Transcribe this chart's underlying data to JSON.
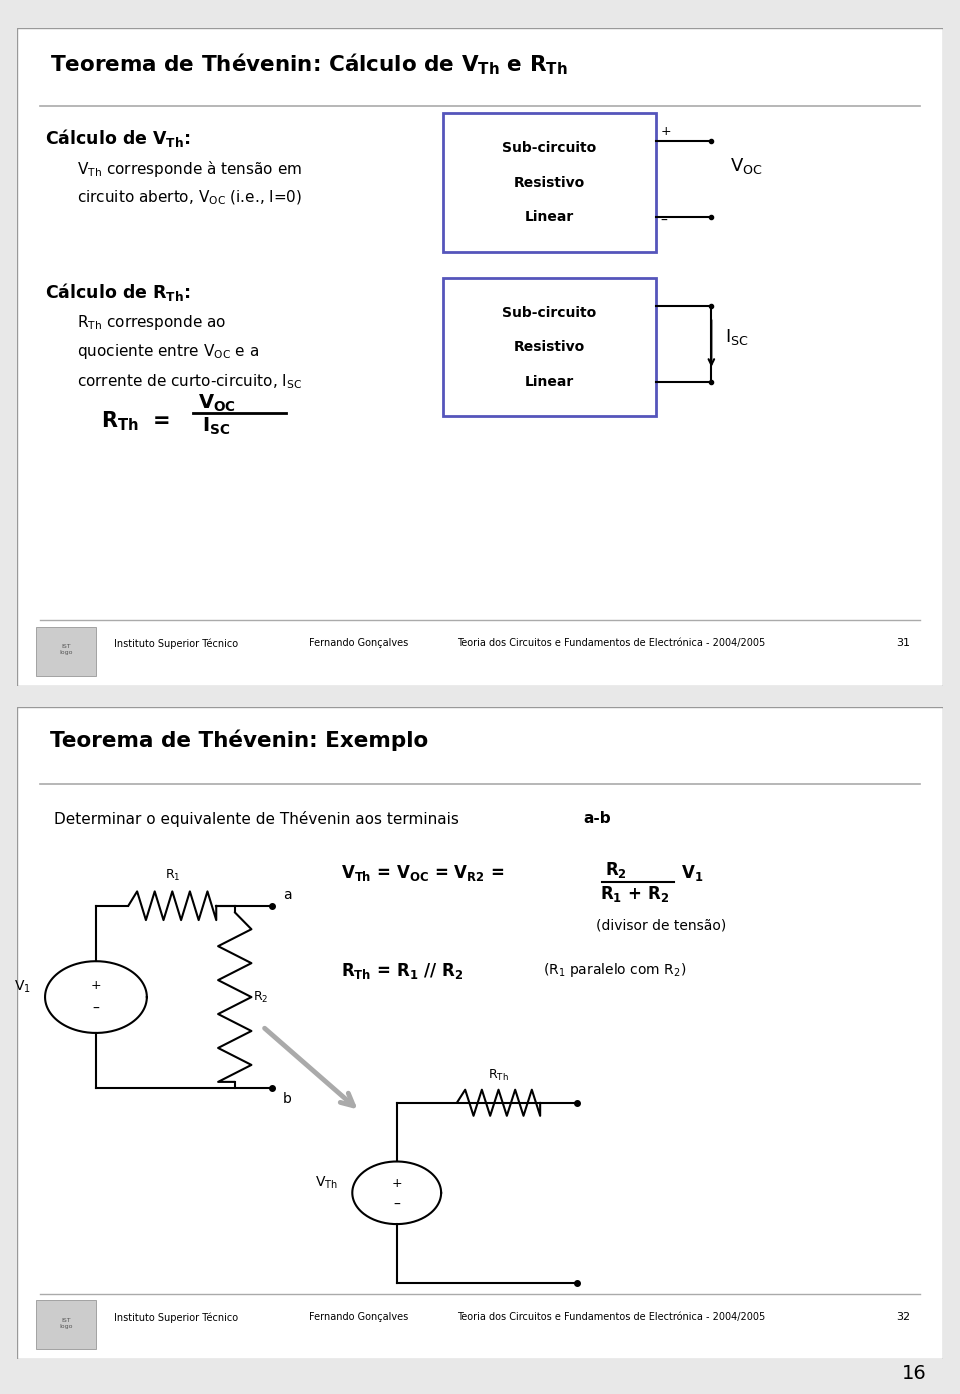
{
  "bg_color": "#e8e8e8",
  "slide1_title": "Teorema de Thévenin: Cálculo de V$_\\mathregular{Th}$ e R$_\\mathregular{Th}$",
  "slide1_sec1_head": "Cálculo de V$_\\mathregular{Th}$:",
  "slide1_sec1_l1": "V$_\\mathregular{Th}$ corresponde à tensão em",
  "slide1_sec1_l2": "circuito aberto, V$_\\mathregular{OC}$ (i.e., I=0)",
  "slide1_box_text": [
    "Sub-circuito",
    "Resistivo",
    "Linear"
  ],
  "slide1_voc": "V$_\\mathregular{OC}$",
  "slide1_sec2_head": "Cálculo de R$_\\mathregular{Th}$:",
  "slide1_sec2_l1": "R$_\\mathregular{Th}$ corresponde ao",
  "slide1_sec2_l2": "quociente entre V$_\\mathregular{OC}$ e a",
  "slide1_sec2_l3": "corrente de curto-circuito, I$_\\mathregular{SC}$",
  "slide1_formula_lhs": "R$_\\mathregular{Th}$ =",
  "slide1_formula_num": "V$_\\mathregular{OC}$",
  "slide1_formula_den": "I$_\\mathregular{SC}$",
  "slide1_isc": "I$_\\mathregular{SC}$",
  "footer1_inst": "Instituto Superior Técnico",
  "footer1_name": "Fernando Gonçalves",
  "footer1_course": "Teoria dos Circuitos e Fundamentos de Electrónica - 2004/2005",
  "footer1_page": "31",
  "slide2_title": "Teorema de Thévenin: Exemplo",
  "slide2_desc_normal": "Determinar o equivalente de Thévenin aos terminais ",
  "slide2_desc_bold": "a-b",
  "slide2_eq1": "V$_\\mathregular{Th}$ = V$_\\mathregular{OC}$ = V$_\\mathregular{R2}$ =",
  "slide2_frac_num": "R$_\\mathregular{2}$",
  "slide2_frac_den": "R$_\\mathregular{1}$ + R$_\\mathregular{2}$",
  "slide2_v1": "V$_\\mathregular{1}$",
  "slide2_divisor": "(divisor de tensão)",
  "slide2_rth_eq": "R$_\\mathregular{Th}$ = R$_\\mathregular{1}$ // R$_\\mathregular{2}$",
  "slide2_rth_note": "(R$_\\mathregular{1}$ paralelo com R$_\\mathregular{2}$)",
  "slide2_rth_label": "R$_\\mathregular{Th}$",
  "slide2_vth_label": "V$_\\mathregular{Th}$",
  "footer2_inst": "Instituto Superior Técnico",
  "footer2_name": "Fernando Gonçalves",
  "footer2_course": "Teoria dos Circuitos e Fundamentos de Electrónica - 2004/2005",
  "footer2_page": "32",
  "page_num": "16",
  "box_edge_color": "#5555bb",
  "box_edge_width": 2.0,
  "wire_color": "black",
  "wire_lw": 1.5
}
